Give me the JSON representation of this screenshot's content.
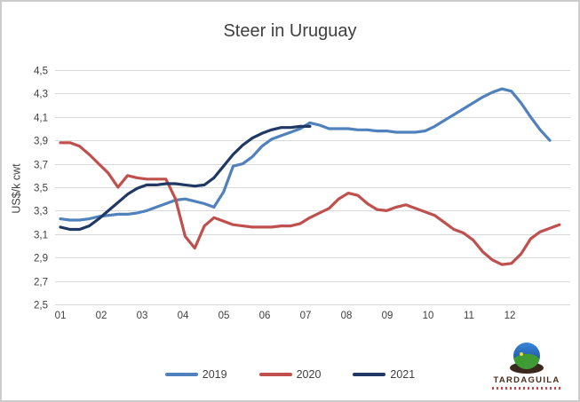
{
  "chart_data": {
    "type": "line",
    "title": "Steer in Uruguay",
    "xlabel": "",
    "ylabel": "US$/k cwt",
    "ylim": [
      2.5,
      4.5
    ],
    "ytick_step": 0.2,
    "ytick_labels": [
      "4,5",
      "4,3",
      "4,1",
      "3,9",
      "3,7",
      "3,5",
      "3,3",
      "3,1",
      "2,9",
      "2,7",
      "2,5"
    ],
    "xtick_labels": [
      "01",
      "02",
      "03",
      "04",
      "05",
      "06",
      "07",
      "08",
      "09",
      "10",
      "11",
      "12"
    ],
    "x_unit": "week-of-year",
    "grid": "horizontal",
    "legend_position": "bottom",
    "series": [
      {
        "name": "2019",
        "color": "#4F81BD",
        "values": [
          3.23,
          3.22,
          3.22,
          3.23,
          3.25,
          3.26,
          3.27,
          3.27,
          3.28,
          3.3,
          3.33,
          3.36,
          3.39,
          3.4,
          3.38,
          3.36,
          3.33,
          3.46,
          3.68,
          3.7,
          3.76,
          3.85,
          3.91,
          3.94,
          3.97,
          4.0,
          4.05,
          4.03,
          4.0,
          4.0,
          4.0,
          3.99,
          3.99,
          3.98,
          3.98,
          3.97,
          3.97,
          3.97,
          3.98,
          4.02,
          4.07,
          4.12,
          4.17,
          4.22,
          4.27,
          4.31,
          4.34,
          4.32,
          4.22,
          4.1,
          3.99,
          3.9
        ]
      },
      {
        "name": "2020",
        "color": "#C0504D",
        "values": [
          3.88,
          3.88,
          3.85,
          3.78,
          3.7,
          3.62,
          3.5,
          3.6,
          3.58,
          3.57,
          3.57,
          3.57,
          3.4,
          3.08,
          2.98,
          3.17,
          3.24,
          3.21,
          3.18,
          3.17,
          3.16,
          3.16,
          3.16,
          3.17,
          3.17,
          3.19,
          3.24,
          3.28,
          3.32,
          3.4,
          3.45,
          3.43,
          3.36,
          3.31,
          3.3,
          3.33,
          3.35,
          3.32,
          3.29,
          3.26,
          3.2,
          3.14,
          3.11,
          3.05,
          2.95,
          2.88,
          2.84,
          2.85,
          2.93,
          3.06,
          3.12,
          3.15,
          3.18
        ]
      },
      {
        "name": "2021",
        "color": "#1F3864",
        "values": [
          3.16,
          3.14,
          3.14,
          3.17,
          3.23,
          3.3,
          3.37,
          3.44,
          3.49,
          3.52,
          3.52,
          3.53,
          3.53,
          3.52,
          3.51,
          3.52,
          3.58,
          3.68,
          3.78,
          3.86,
          3.92,
          3.96,
          3.99,
          4.01,
          4.01,
          4.02,
          4.02
        ]
      }
    ]
  },
  "logo": {
    "icon": "globe-icon",
    "text": "TARDAGUILA"
  }
}
